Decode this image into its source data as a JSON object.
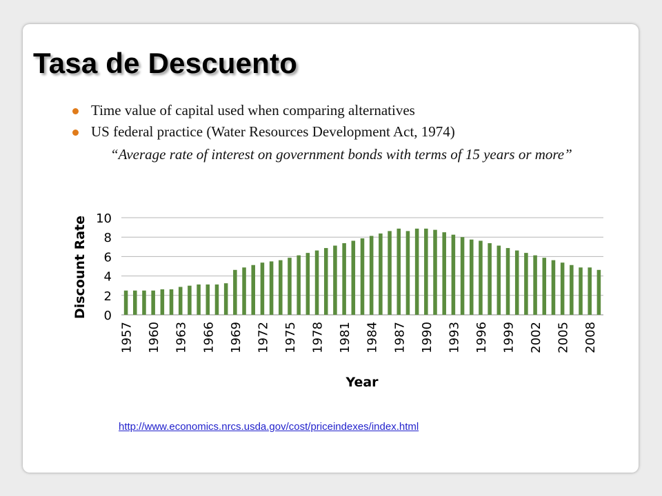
{
  "slide": {
    "title": "Tasa de Descuento",
    "bullets": [
      "Time value of capital used when comparing alternatives",
      "US federal practice (Water Resources Development Act, 1974)"
    ],
    "quote": "“Average rate of interest on government bonds with terms of 15 years or more”",
    "source_link": "http://www.economics.nrcs.usda.gov/cost/priceindexes/index.html"
  },
  "colors": {
    "bar": "#5b8c3e",
    "bullet": "#e07b1a",
    "link": "#2222cc"
  },
  "chart_data": {
    "type": "bar",
    "title": "",
    "xlabel": "Year",
    "ylabel": "Discount Rate",
    "ylim": [
      0,
      10
    ],
    "yticks": [
      0,
      2,
      4,
      6,
      8,
      10
    ],
    "grid": true,
    "legend": "none",
    "tick_label_years": [
      "1957",
      "1960",
      "1963",
      "1966",
      "1969",
      "1972",
      "1975",
      "1978",
      "1981",
      "1984",
      "1987",
      "1990",
      "1993",
      "1996",
      "1999",
      "2002",
      "2005",
      "2008"
    ],
    "categories": [
      "1957",
      "1958",
      "1959",
      "1960",
      "1961",
      "1962",
      "1963",
      "1964",
      "1965",
      "1966",
      "1967",
      "1968",
      "1969",
      "1970",
      "1971",
      "1972",
      "1973",
      "1974",
      "1975",
      "1976",
      "1977",
      "1978",
      "1979",
      "1980",
      "1981",
      "1982",
      "1983",
      "1984",
      "1985",
      "1986",
      "1987",
      "1988",
      "1989",
      "1990",
      "1991",
      "1992",
      "1993",
      "1994",
      "1995",
      "1996",
      "1997",
      "1998",
      "1999",
      "2000",
      "2001",
      "2002",
      "2003",
      "2004",
      "2005",
      "2006",
      "2007",
      "2008",
      "2009"
    ],
    "values": [
      2.5,
      2.5,
      2.5,
      2.5,
      2.625,
      2.625,
      2.875,
      3.0,
      3.125,
      3.125,
      3.125,
      3.25,
      4.625,
      4.875,
      5.125,
      5.375,
      5.5,
      5.625,
      5.875,
      6.125,
      6.375,
      6.625,
      6.875,
      7.125,
      7.375,
      7.625,
      7.875,
      8.125,
      8.375,
      8.625,
      8.875,
      8.625,
      8.875,
      8.875,
      8.75,
      8.5,
      8.25,
      8.0,
      7.75,
      7.625,
      7.375,
      7.125,
      6.875,
      6.625,
      6.375,
      6.125,
      5.875,
      5.625,
      5.375,
      5.125,
      4.875,
      4.875,
      4.625
    ]
  }
}
